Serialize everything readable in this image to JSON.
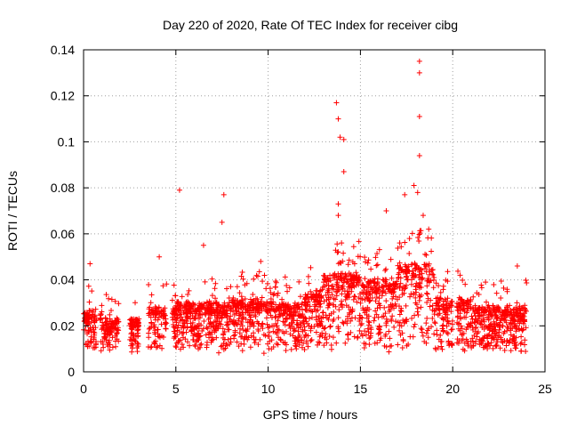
{
  "chart_data": {
    "type": "scatter",
    "title": "Day 220 of 2020, Rate Of TEC Index for receiver cibg",
    "xlabel": "GPS time / hours",
    "ylabel": "ROTI / TECUs",
    "xlim": [
      0,
      25
    ],
    "ylim": [
      0,
      0.14
    ],
    "xticks": [
      0,
      5,
      10,
      15,
      20,
      25
    ],
    "xtick_labels": [
      "0",
      "5",
      "10",
      "15",
      "20",
      "25"
    ],
    "yticks": [
      0,
      0.02,
      0.04,
      0.06,
      0.08,
      0.1,
      0.12,
      0.14
    ],
    "ytick_labels": [
      "0",
      "0.02",
      "0.04",
      "0.06",
      "0.08",
      "0.1",
      "0.12",
      "0.14"
    ],
    "grid": true,
    "marker": "+",
    "color": "#ff0000",
    "x_range_hours": [
      0,
      24
    ],
    "typical_roti_band": [
      0.008,
      0.03
    ],
    "notable_points": [
      {
        "x": 0.35,
        "y": 0.047
      },
      {
        "x": 4.1,
        "y": 0.05
      },
      {
        "x": 5.2,
        "y": 0.079
      },
      {
        "x": 6.5,
        "y": 0.055
      },
      {
        "x": 7.6,
        "y": 0.077
      },
      {
        "x": 7.5,
        "y": 0.065
      },
      {
        "x": 9.6,
        "y": 0.048
      },
      {
        "x": 13.7,
        "y": 0.117
      },
      {
        "x": 13.8,
        "y": 0.11
      },
      {
        "x": 13.9,
        "y": 0.102
      },
      {
        "x": 14.1,
        "y": 0.101
      },
      {
        "x": 14.1,
        "y": 0.087
      },
      {
        "x": 13.8,
        "y": 0.073
      },
      {
        "x": 13.8,
        "y": 0.068
      },
      {
        "x": 16.4,
        "y": 0.07
      },
      {
        "x": 17.4,
        "y": 0.077
      },
      {
        "x": 18.2,
        "y": 0.135
      },
      {
        "x": 18.2,
        "y": 0.13
      },
      {
        "x": 18.2,
        "y": 0.111
      },
      {
        "x": 18.2,
        "y": 0.094
      },
      {
        "x": 17.9,
        "y": 0.081
      },
      {
        "x": 18.1,
        "y": 0.078
      },
      {
        "x": 18.4,
        "y": 0.068
      },
      {
        "x": 18.7,
        "y": 0.062
      },
      {
        "x": 20.4,
        "y": 0.042
      },
      {
        "x": 23.5,
        "y": 0.046
      }
    ]
  }
}
